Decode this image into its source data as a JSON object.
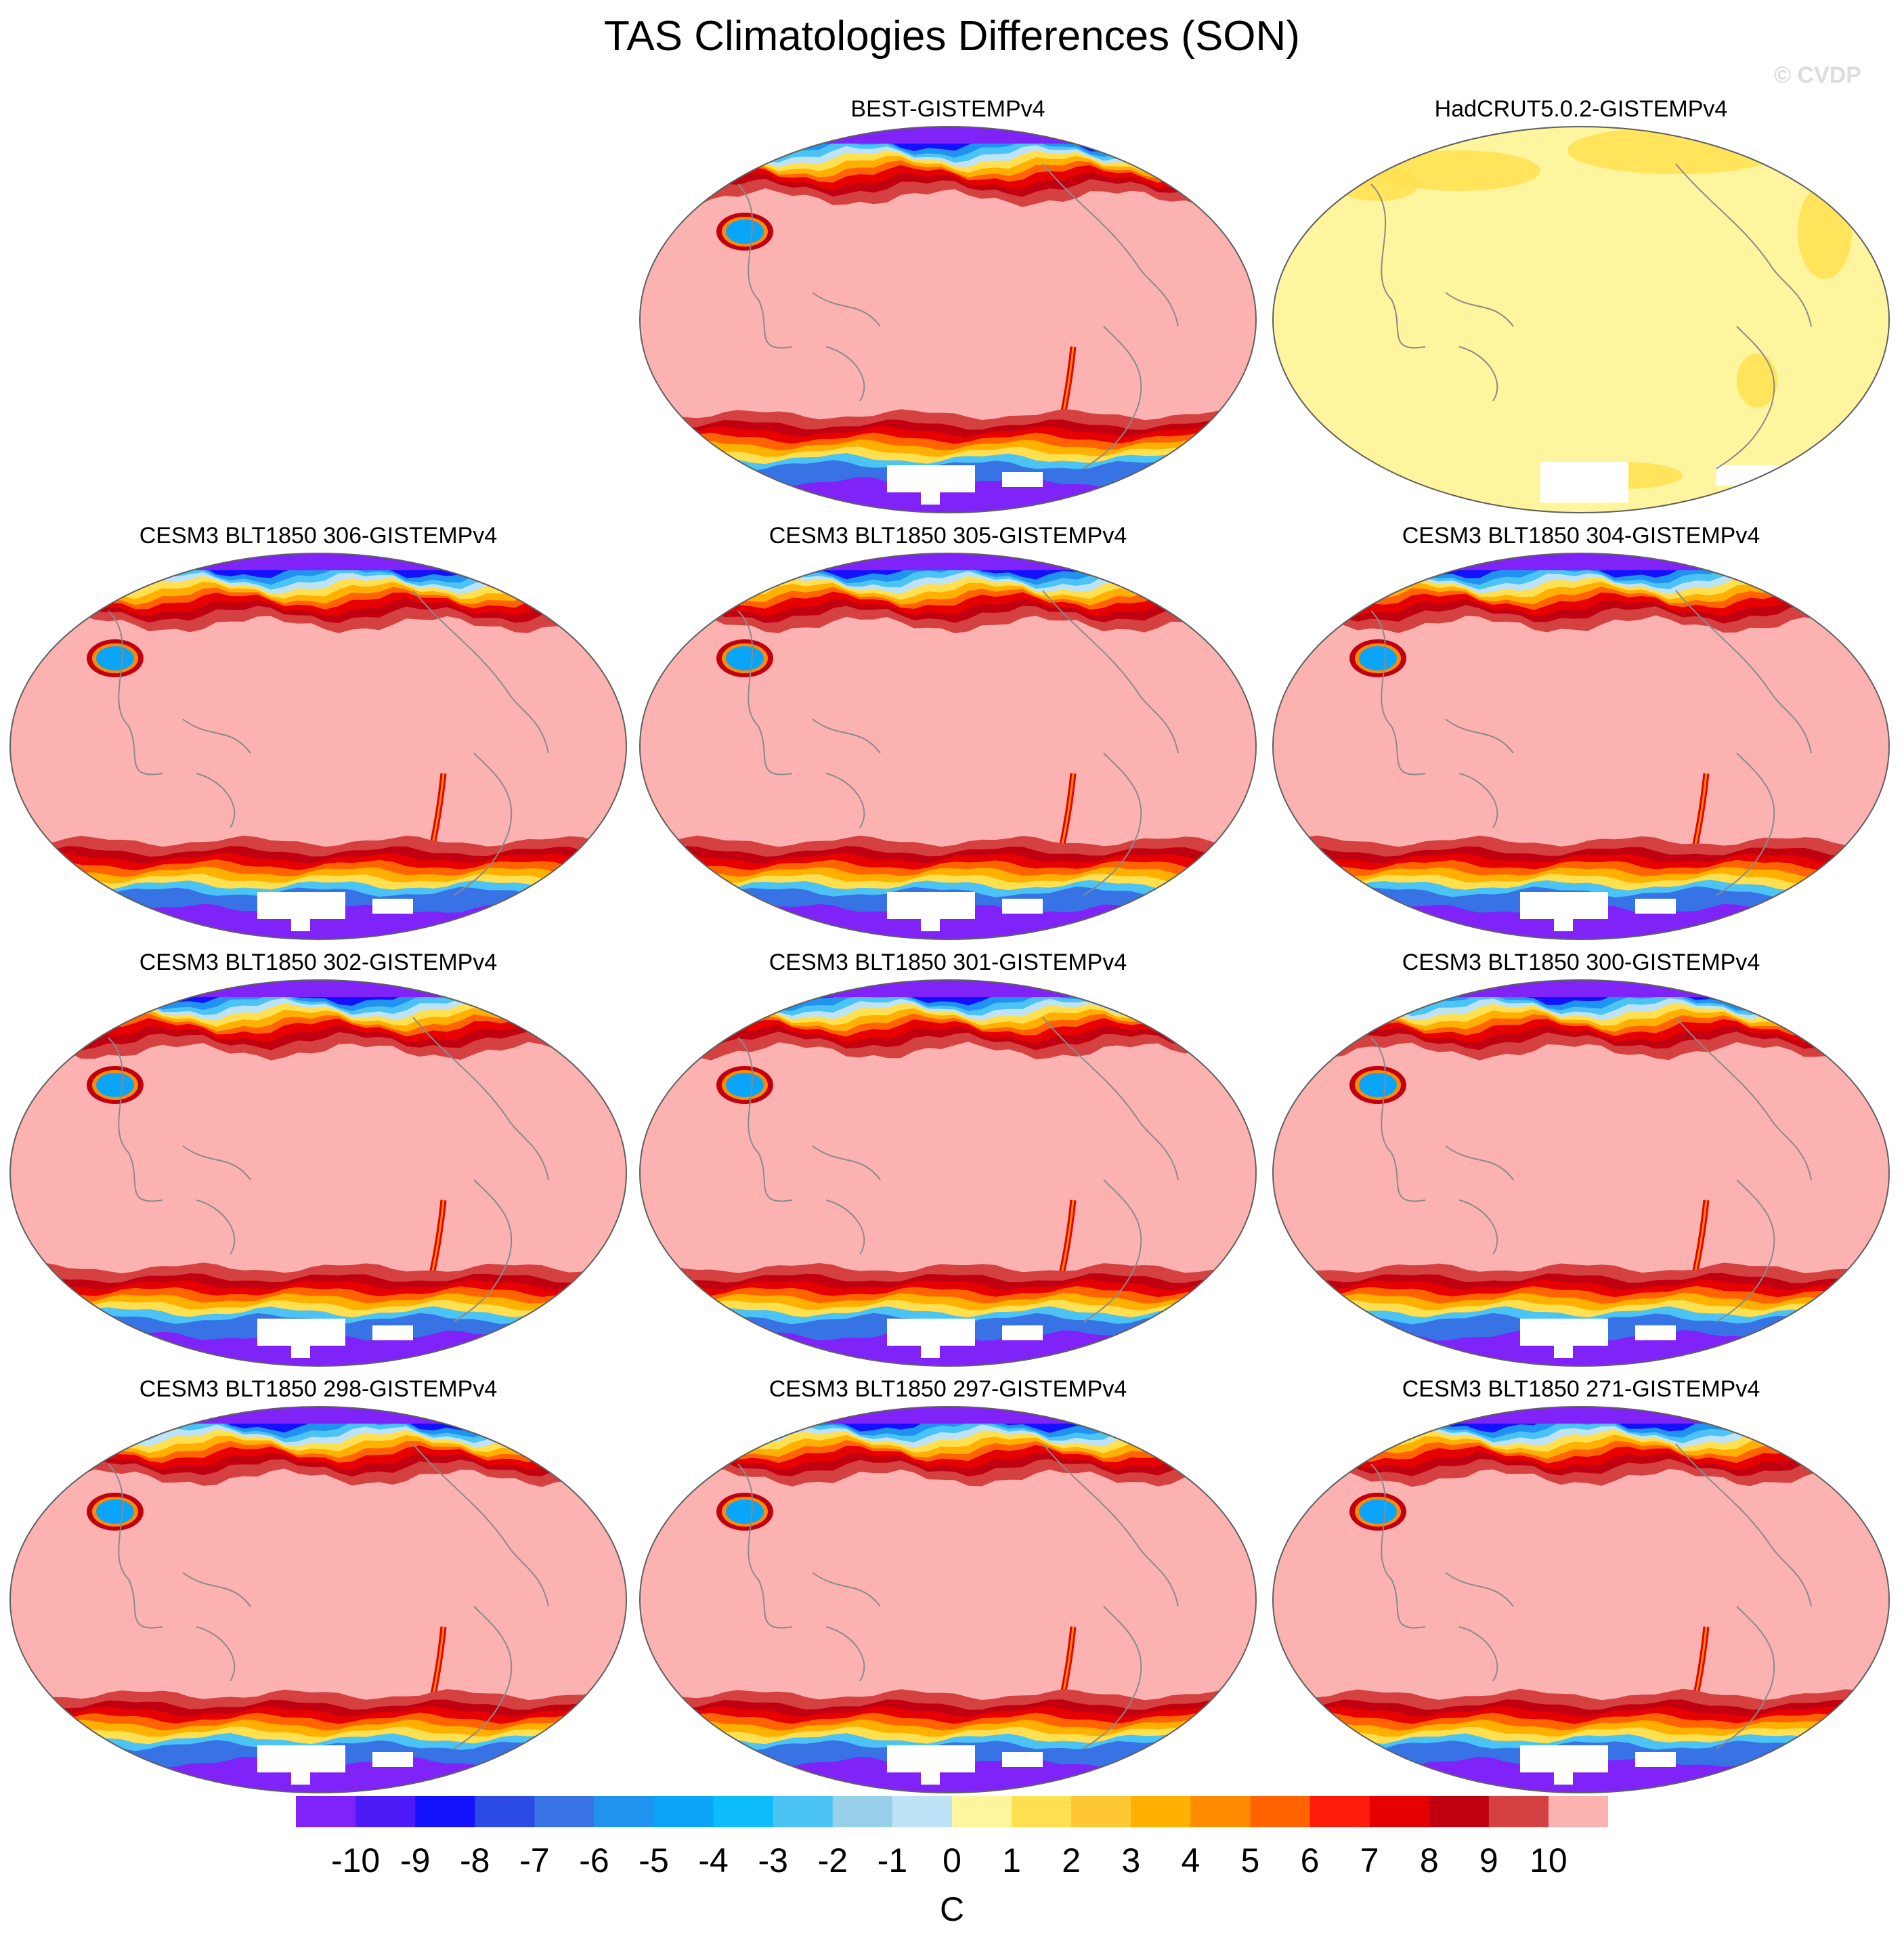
{
  "title": "TAS Climatologies Differences (SON)",
  "watermark": "© CVDP",
  "colors": {
    "ocean_diff": "#fdb2b2",
    "hadcrut_base": "#fff59e",
    "land_outline": "#8a8a8a",
    "missing": "#ffffff",
    "map_border": "#606060"
  },
  "colorbar": {
    "colors": [
      "#8023f8",
      "#4b1cf8",
      "#1212ff",
      "#2c4ae6",
      "#3873e6",
      "#2092f0",
      "#0aa5f8",
      "#0cbdfa",
      "#4cc3f5",
      "#98d0ec",
      "#bfe3f6",
      "#fff59e",
      "#ffe050",
      "#ffc832",
      "#ffb000",
      "#ff8c00",
      "#ff6400",
      "#ff1c0a",
      "#e60000",
      "#c00010",
      "#d54040",
      "#fdb2b2"
    ],
    "ticks": [
      "-10",
      "-9",
      "-8",
      "-7",
      "-6",
      "-5",
      "-4",
      "-3",
      "-2",
      "-1",
      "0",
      "1",
      "2",
      "3",
      "4",
      "5",
      "6",
      "7",
      "8",
      "9",
      "10"
    ],
    "units": "C"
  },
  "panels": [
    {
      "title": "BEST-GISTEMPv4",
      "style": "model"
    },
    {
      "title": "HadCRUT5.0.2-GISTEMPv4",
      "style": "hadcrut"
    },
    {
      "title": "CESM3 BLT1850 306-GISTEMPv4",
      "style": "model"
    },
    {
      "title": "CESM3 BLT1850 305-GISTEMPv4",
      "style": "model"
    },
    {
      "title": "CESM3 BLT1850 304-GISTEMPv4",
      "style": "model"
    },
    {
      "title": "CESM3 BLT1850 302-GISTEMPv4",
      "style": "model"
    },
    {
      "title": "CESM3 BLT1850 301-GISTEMPv4",
      "style": "model"
    },
    {
      "title": "CESM3 BLT1850 300-GISTEMPv4",
      "style": "model"
    },
    {
      "title": "CESM3 BLT1850 298-GISTEMPv4",
      "style": "model"
    },
    {
      "title": "CESM3 BLT1850 297-GISTEMPv4",
      "style": "model"
    },
    {
      "title": "CESM3 BLT1850 271-GISTEMPv4",
      "style": "model"
    }
  ]
}
